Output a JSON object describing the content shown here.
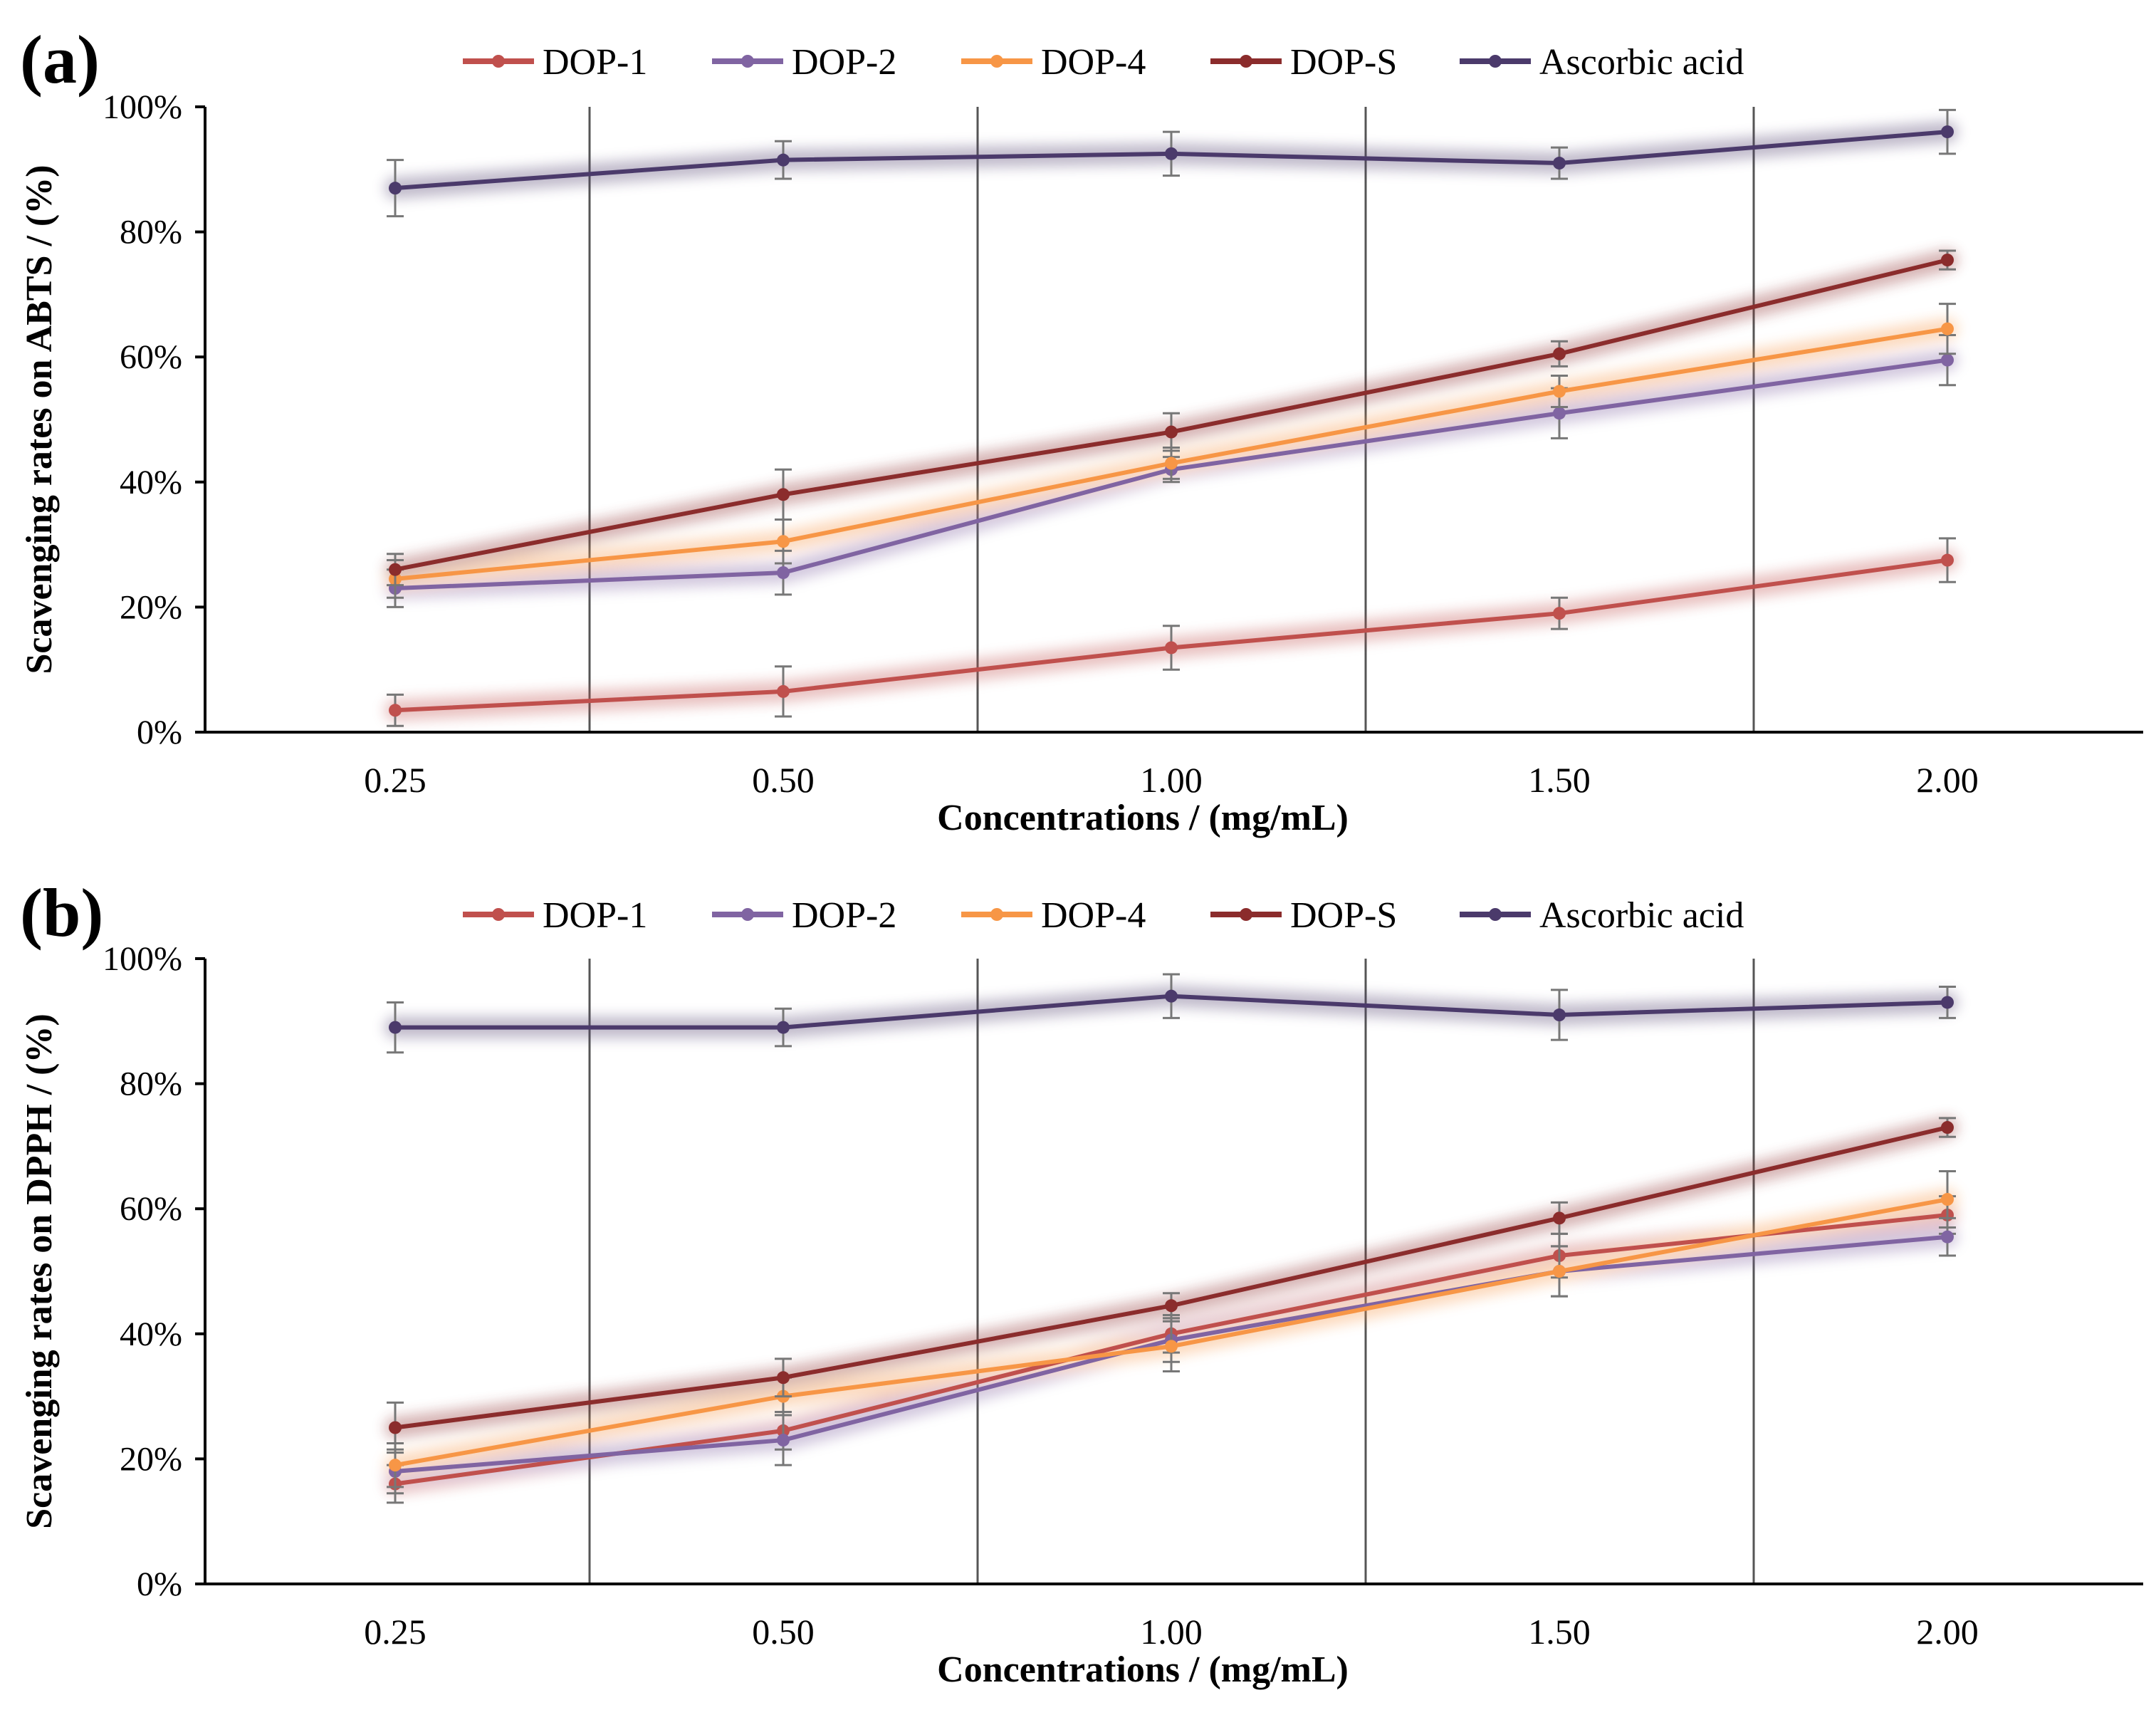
{
  "chart_data": [
    {
      "type": "line",
      "panel_label": "(a)",
      "xlabel": "Concentrations / (mg/mL)",
      "ylabel": "Scavenging rates on ABTS  / (%)",
      "categories": [
        "0.25",
        "0.50",
        "1.00",
        "1.50",
        "2.00"
      ],
      "y_ticks": [
        "0%",
        "20%",
        "40%",
        "60%",
        "80%",
        "100%"
      ],
      "ylim": [
        0,
        100
      ],
      "grid": "vertical",
      "legend_position": "top",
      "series": [
        {
          "name": "DOP-1",
          "color": "#c0504d",
          "values": [
            3.5,
            6.5,
            13.5,
            19,
            27.5
          ],
          "errors": [
            2.5,
            4,
            3.5,
            2.5,
            3.5
          ]
        },
        {
          "name": "DOP-2",
          "color": "#8064a2",
          "values": [
            23,
            25.5,
            42,
            51,
            59.5
          ],
          "errors": [
            3,
            3.5,
            2,
            4,
            4
          ]
        },
        {
          "name": "DOP-4",
          "color": "#f79646",
          "values": [
            24.5,
            30.5,
            43,
            54.5,
            64.5
          ],
          "errors": [
            3,
            3.5,
            2.5,
            2.5,
            4
          ]
        },
        {
          "name": "DOP-S",
          "color": "#8b2c2c",
          "values": [
            26,
            38,
            48,
            60.5,
            75.5
          ],
          "errors": [
            2.5,
            4,
            3,
            2,
            1.5
          ]
        },
        {
          "name": "Ascorbic acid",
          "color": "#4b3a6b",
          "values": [
            87,
            91.5,
            92.5,
            91,
            96
          ],
          "errors": [
            4.5,
            3,
            3.5,
            2.5,
            3.5
          ]
        }
      ]
    },
    {
      "type": "line",
      "panel_label": "(b)",
      "xlabel": "Concentrations / (mg/mL)",
      "ylabel": "Scavenging rates on DPPH  / (%)",
      "categories": [
        "0.25",
        "0.50",
        "1.00",
        "1.50",
        "2.00"
      ],
      "y_ticks": [
        "0%",
        "20%",
        "40%",
        "60%",
        "80%",
        "100%"
      ],
      "ylim": [
        0,
        100
      ],
      "grid": "vertical",
      "legend_position": "top",
      "series": [
        {
          "name": "DOP-1",
          "color": "#c0504d",
          "values": [
            16,
            24.5,
            40,
            52.5,
            59
          ],
          "errors": [
            3,
            3,
            3,
            3.5,
            3
          ]
        },
        {
          "name": "DOP-2",
          "color": "#8064a2",
          "values": [
            18,
            23,
            39,
            50,
            55.5
          ],
          "errors": [
            3.5,
            4,
            3.5,
            4,
            3
          ]
        },
        {
          "name": "DOP-4",
          "color": "#f79646",
          "values": [
            19,
            30,
            38,
            50,
            61.5
          ],
          "errors": [
            3.5,
            3,
            4,
            4,
            4.5
          ]
        },
        {
          "name": "DOP-S",
          "color": "#8b2c2c",
          "values": [
            25,
            33,
            44.5,
            58.5,
            73
          ],
          "errors": [
            4,
            3,
            2,
            2.5,
            1.5
          ]
        },
        {
          "name": "Ascorbic acid",
          "color": "#4b3a6b",
          "values": [
            89,
            89,
            94,
            91,
            93
          ],
          "errors": [
            4,
            3,
            3.5,
            4,
            2.5
          ]
        }
      ]
    }
  ]
}
